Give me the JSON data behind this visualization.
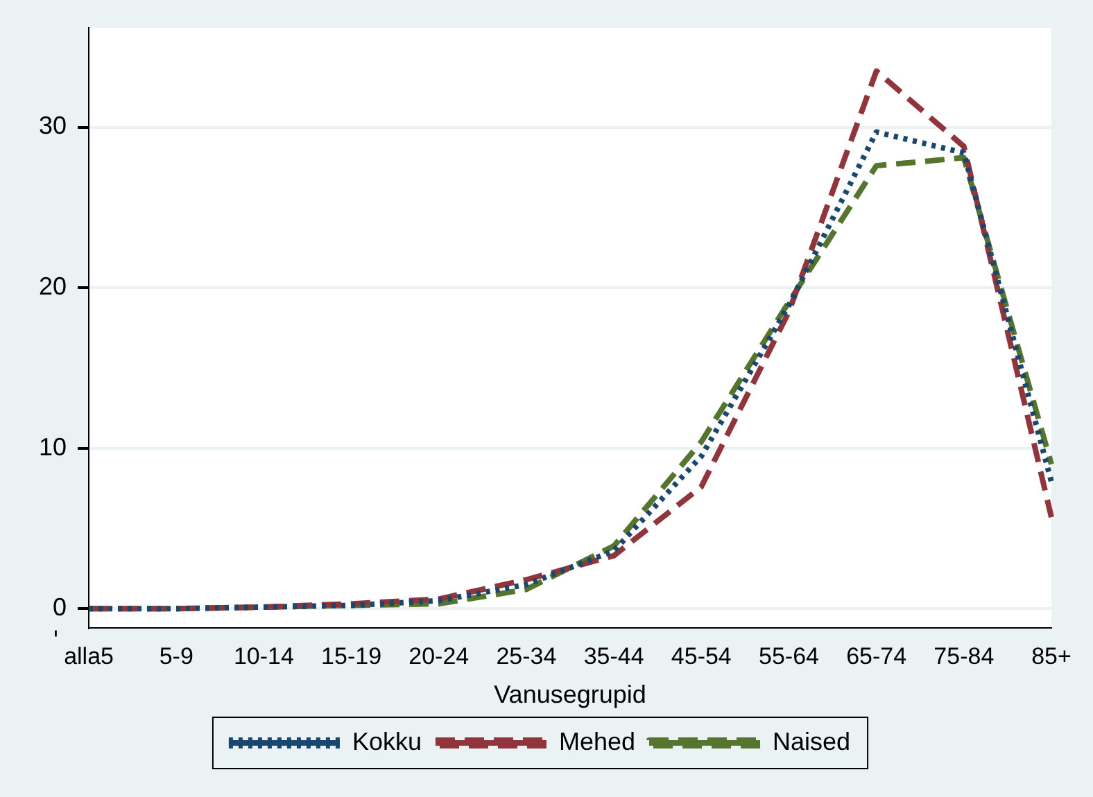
{
  "chart_data": {
    "type": "line",
    "xlabel": "Vanusegrupid",
    "categories": [
      "alla5",
      "5-9",
      "10-14",
      "15-19",
      "20-24",
      "25-34",
      "35-44",
      "45-54",
      "55-64",
      "65-74",
      "75-84",
      "85+"
    ],
    "series": [
      {
        "name": "Kokku",
        "color": "#1a476f",
        "line_style": "dotted",
        "values": [
          0,
          0,
          0.1,
          0.2,
          0.5,
          1.5,
          3.6,
          9.5,
          18.9,
          29.7,
          28.4,
          7.9
        ]
      },
      {
        "name": "Mehed",
        "color": "#90353b",
        "line_style": "dashed",
        "values": [
          0,
          0,
          0.1,
          0.3,
          0.6,
          1.8,
          3.3,
          7.6,
          18.5,
          33.5,
          28.8,
          5.7
        ]
      },
      {
        "name": "Naised",
        "color": "#55752f",
        "line_style": "dashed",
        "values": [
          0,
          0,
          0.1,
          0.2,
          0.3,
          1.2,
          3.9,
          10.4,
          19.1,
          27.6,
          28.1,
          9.0
        ]
      }
    ],
    "ylim": [
      -1.2,
      36.2
    ],
    "yticks": [
      0,
      10,
      20,
      30
    ],
    "grid": "y",
    "legend": "bottom",
    "marker": "none",
    "annotations": [
      "-"
    ]
  }
}
